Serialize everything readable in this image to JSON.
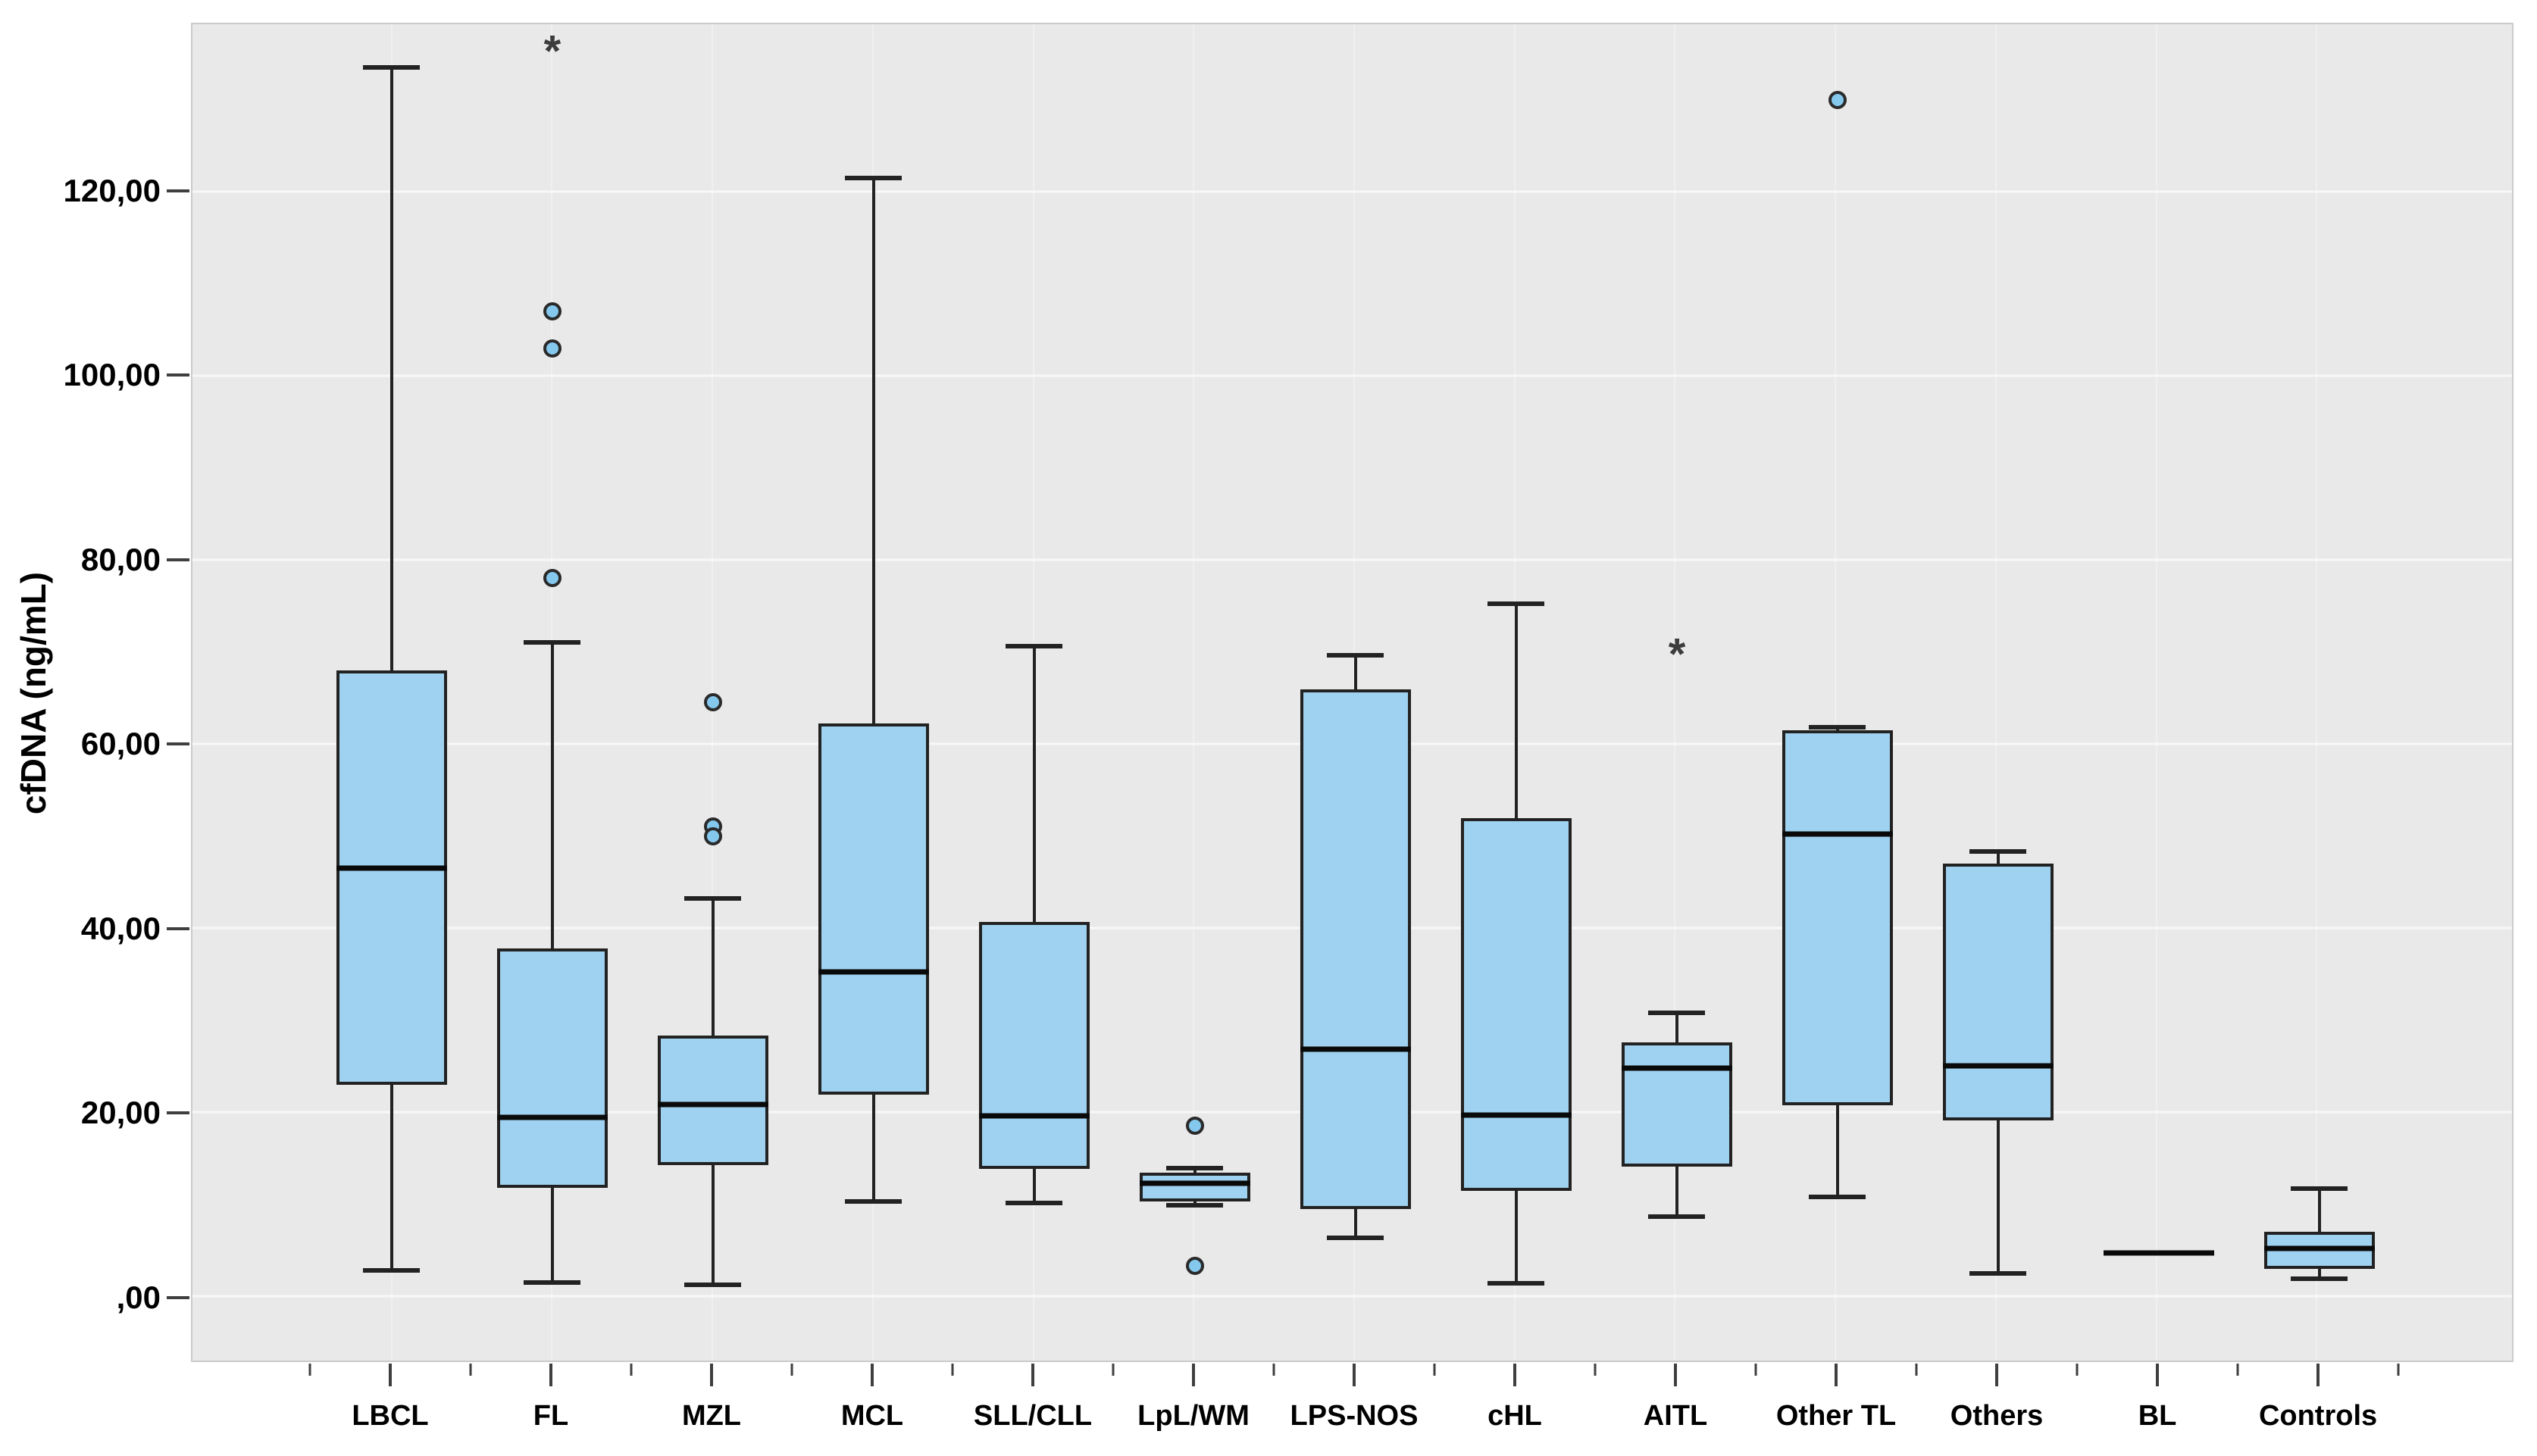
{
  "figure": {
    "page_background": "#ffffff",
    "plot_background": "#e9e9e9",
    "colors": {
      "box_fill": "#9fd2f0",
      "box_border": "#222222",
      "median_line": "#0a0a0a",
      "whisker": "#222222",
      "outlier_fill": "#85c8ee",
      "outlier_border": "#2a2a2a",
      "extreme_marker": "#3c3c3c",
      "grid_horizontal": "#f8f8f8",
      "grid_vertical": "#f0f0f0",
      "axis_tick": "#3f3f3f"
    }
  },
  "chart_data": {
    "type": "boxplot",
    "title": "",
    "xlabel": "",
    "ylabel": "cfDNA (ng/mL)",
    "ylim": [
      -7.0,
      138.2
    ],
    "grid": true,
    "legend_position": "none",
    "decimal_format": "comma",
    "y_ticks": [
      {
        "value": 0,
        "label": ",00"
      },
      {
        "value": 20,
        "label": "20,00"
      },
      {
        "value": 40,
        "label": "40,00"
      },
      {
        "value": 60,
        "label": "60,00"
      },
      {
        "value": 80,
        "label": "80,00"
      },
      {
        "value": 100,
        "label": "100,00"
      },
      {
        "value": 120,
        "label": "120,00"
      }
    ],
    "categories": [
      "LBCL",
      "FL",
      "MZL",
      "MCL",
      "SLL/CLL",
      "LpL/WM",
      "LPS-NOS",
      "cHL",
      "AITL",
      "Other TL",
      "Others",
      "BL",
      "Controls"
    ],
    "boxes": [
      {
        "category": "LBCL",
        "whisker_low": 2.8,
        "q1": 23.0,
        "median": 46.5,
        "q3": 68.0,
        "whisker_high": 133.5,
        "outliers": [],
        "extremes": []
      },
      {
        "category": "FL",
        "whisker_low": 1.5,
        "q1": 11.8,
        "median": 19.4,
        "q3": 37.8,
        "whisker_high": 71.0,
        "outliers": [
          107.0,
          103.0,
          78.0
        ],
        "extremes": [
          134.8
        ]
      },
      {
        "category": "MZL",
        "whisker_low": 1.2,
        "q1": 14.2,
        "median": 20.8,
        "q3": 28.3,
        "whisker_high": 43.2,
        "outliers": [
          64.5,
          51.0,
          50.0
        ],
        "extremes": []
      },
      {
        "category": "MCL",
        "whisker_low": 10.3,
        "q1": 21.9,
        "median": 35.2,
        "q3": 62.2,
        "whisker_high": 121.5,
        "outliers": [],
        "extremes": []
      },
      {
        "category": "SLL/CLL",
        "whisker_low": 10.1,
        "q1": 13.8,
        "median": 19.6,
        "q3": 40.7,
        "whisker_high": 70.6,
        "outliers": [],
        "extremes": []
      },
      {
        "category": "LpL/WM",
        "whisker_low": 9.9,
        "q1": 10.3,
        "median": 12.3,
        "q3": 13.4,
        "whisker_high": 13.9,
        "outliers": [
          18.5,
          3.3
        ],
        "extremes": []
      },
      {
        "category": "LPS-NOS",
        "whisker_low": 6.3,
        "q1": 9.5,
        "median": 26.8,
        "q3": 65.9,
        "whisker_high": 69.6,
        "outliers": [],
        "extremes": []
      },
      {
        "category": "cHL",
        "whisker_low": 1.4,
        "q1": 11.4,
        "median": 19.7,
        "q3": 51.9,
        "whisker_high": 75.2,
        "outliers": [],
        "extremes": []
      },
      {
        "category": "AITL",
        "whisker_low": 8.6,
        "q1": 14.1,
        "median": 24.8,
        "q3": 27.6,
        "whisker_high": 30.8,
        "outliers": [],
        "extremes": [
          69.3
        ]
      },
      {
        "category": "Other TL",
        "whisker_low": 10.8,
        "q1": 20.7,
        "median": 50.2,
        "q3": 61.5,
        "whisker_high": 61.8,
        "outliers": [
          130.0
        ],
        "extremes": []
      },
      {
        "category": "Others",
        "whisker_low": 2.5,
        "q1": 19.1,
        "median": 25.0,
        "q3": 47.0,
        "whisker_high": 48.3,
        "outliers": [],
        "extremes": []
      },
      {
        "category": "BL",
        "line_only": true,
        "median": 4.7,
        "outliers": [],
        "extremes": []
      },
      {
        "category": "Controls",
        "whisker_low": 1.9,
        "q1": 3.0,
        "median": 5.2,
        "q3": 7.0,
        "whisker_high": 11.7,
        "outliers": [],
        "extremes": []
      }
    ]
  }
}
